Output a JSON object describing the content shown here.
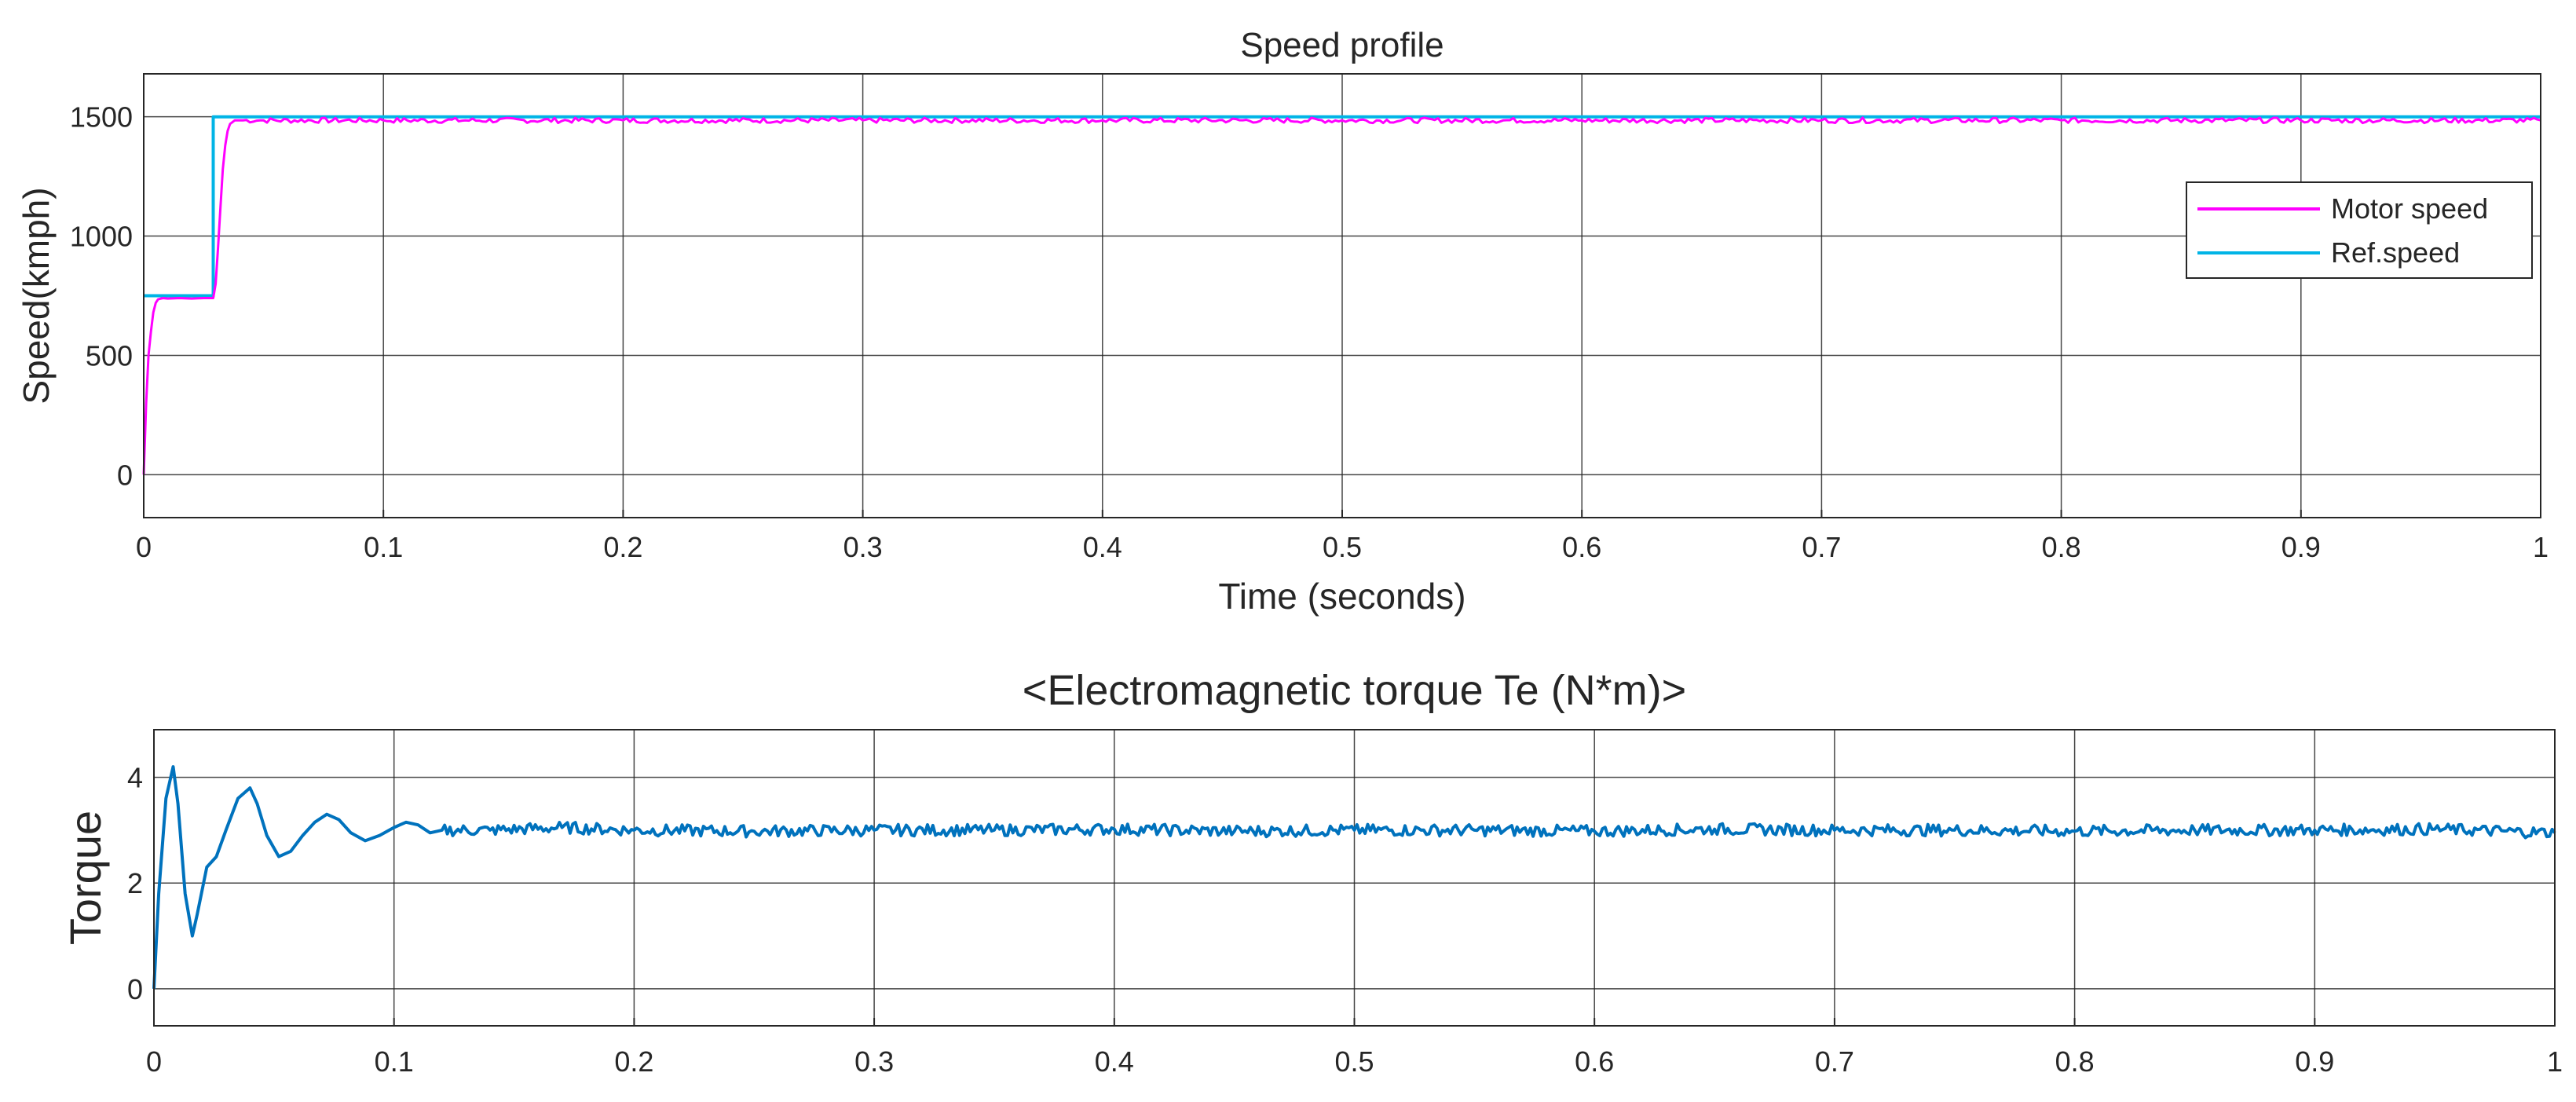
{
  "chart_data": [
    {
      "type": "line",
      "title": "Speed profile",
      "xlabel": "Time (seconds)",
      "ylabel": "Speed(kmph)",
      "xlim": [
        0,
        1
      ],
      "ylim": [
        -180,
        1680
      ],
      "grid": true,
      "legend_position": "right",
      "x_ticks": [
        0,
        0.1,
        0.2,
        0.3,
        0.4,
        0.5,
        0.6,
        0.7,
        0.8,
        0.9,
        1
      ],
      "x_tick_labels": [
        "0",
        "0.1",
        "0.2",
        "0.3",
        "0.4",
        "0.5",
        "0.6",
        "0.7",
        "0.8",
        "0.9",
        "1"
      ],
      "y_ticks": [
        0,
        500,
        1000,
        1500
      ],
      "y_tick_labels": [
        "0",
        "500",
        "1000",
        "1500"
      ],
      "series": [
        {
          "name": "Motor speed",
          "color": "#ff00ff",
          "x": [
            0,
            0.001,
            0.002,
            0.003,
            0.004,
            0.005,
            0.006,
            0.008,
            0.01,
            0.015,
            0.02,
            0.025,
            0.029,
            0.03,
            0.031,
            0.032,
            0.033,
            0.034,
            0.035,
            0.036,
            0.038,
            0.04,
            0.05,
            0.1,
            0.2,
            0.3,
            0.4,
            0.5,
            0.6,
            0.7,
            0.8,
            0.9,
            1.0
          ],
          "y": [
            0,
            300,
            500,
            600,
            680,
            720,
            735,
            740,
            738,
            740,
            738,
            740,
            740,
            800,
            950,
            1120,
            1280,
            1380,
            1440,
            1470,
            1485,
            1485,
            1485,
            1485,
            1485,
            1485,
            1485,
            1485,
            1485,
            1485,
            1485,
            1485,
            1485
          ]
        },
        {
          "name": "Ref.speed",
          "color": "#00b4e6",
          "x": [
            0,
            0.029,
            0.029,
            1.0
          ],
          "y": [
            750,
            750,
            1500,
            1500
          ]
        }
      ]
    },
    {
      "type": "line",
      "title": "<Electromagnetic torque Te (N*m)>",
      "xlabel": "",
      "ylabel": "Torque",
      "xlim": [
        0,
        1
      ],
      "ylim": [
        -0.7,
        4.9
      ],
      "grid": true,
      "x_ticks": [
        0,
        0.1,
        0.2,
        0.3,
        0.4,
        0.5,
        0.6,
        0.7,
        0.8,
        0.9,
        1
      ],
      "x_tick_labels": [
        "0",
        "0.1",
        "0.2",
        "0.3",
        "0.4",
        "0.5",
        "0.6",
        "0.7",
        "0.8",
        "0.9",
        "1"
      ],
      "y_ticks": [
        0,
        2,
        4
      ],
      "y_tick_labels": [
        "0",
        "2",
        "4"
      ],
      "series": [
        {
          "color": "#0072bd",
          "x": [
            0,
            0.002,
            0.005,
            0.008,
            0.01,
            0.013,
            0.016,
            0.018,
            0.022,
            0.026,
            0.03,
            0.035,
            0.04,
            0.043,
            0.047,
            0.052,
            0.057,
            0.062,
            0.067,
            0.072,
            0.077,
            0.082,
            0.088,
            0.094,
            0.1,
            0.105,
            0.11,
            0.115,
            0.12,
            0.14,
            0.17,
            0.2,
            0.25,
            0.3,
            0.35,
            0.4,
            0.45,
            0.5,
            0.55,
            0.6,
            0.65,
            0.7,
            0.75,
            0.8,
            0.85,
            0.9,
            0.95,
            1.0
          ],
          "y": [
            0,
            1.8,
            3.6,
            4.2,
            3.5,
            1.8,
            1.0,
            1.4,
            2.3,
            2.5,
            3.0,
            3.6,
            3.8,
            3.5,
            2.9,
            2.5,
            2.6,
            2.9,
            3.15,
            3.3,
            3.2,
            2.95,
            2.8,
            2.9,
            3.05,
            3.15,
            3.1,
            2.95,
            3.0,
            3.0,
            3.05,
            3.0,
            2.98,
            3.0,
            3.0,
            3.02,
            2.98,
            3.0,
            3.0,
            2.98,
            3.02,
            3.0,
            3.0,
            2.98,
            3.0,
            3.0,
            3.02,
            2.95
          ]
        }
      ]
    }
  ]
}
